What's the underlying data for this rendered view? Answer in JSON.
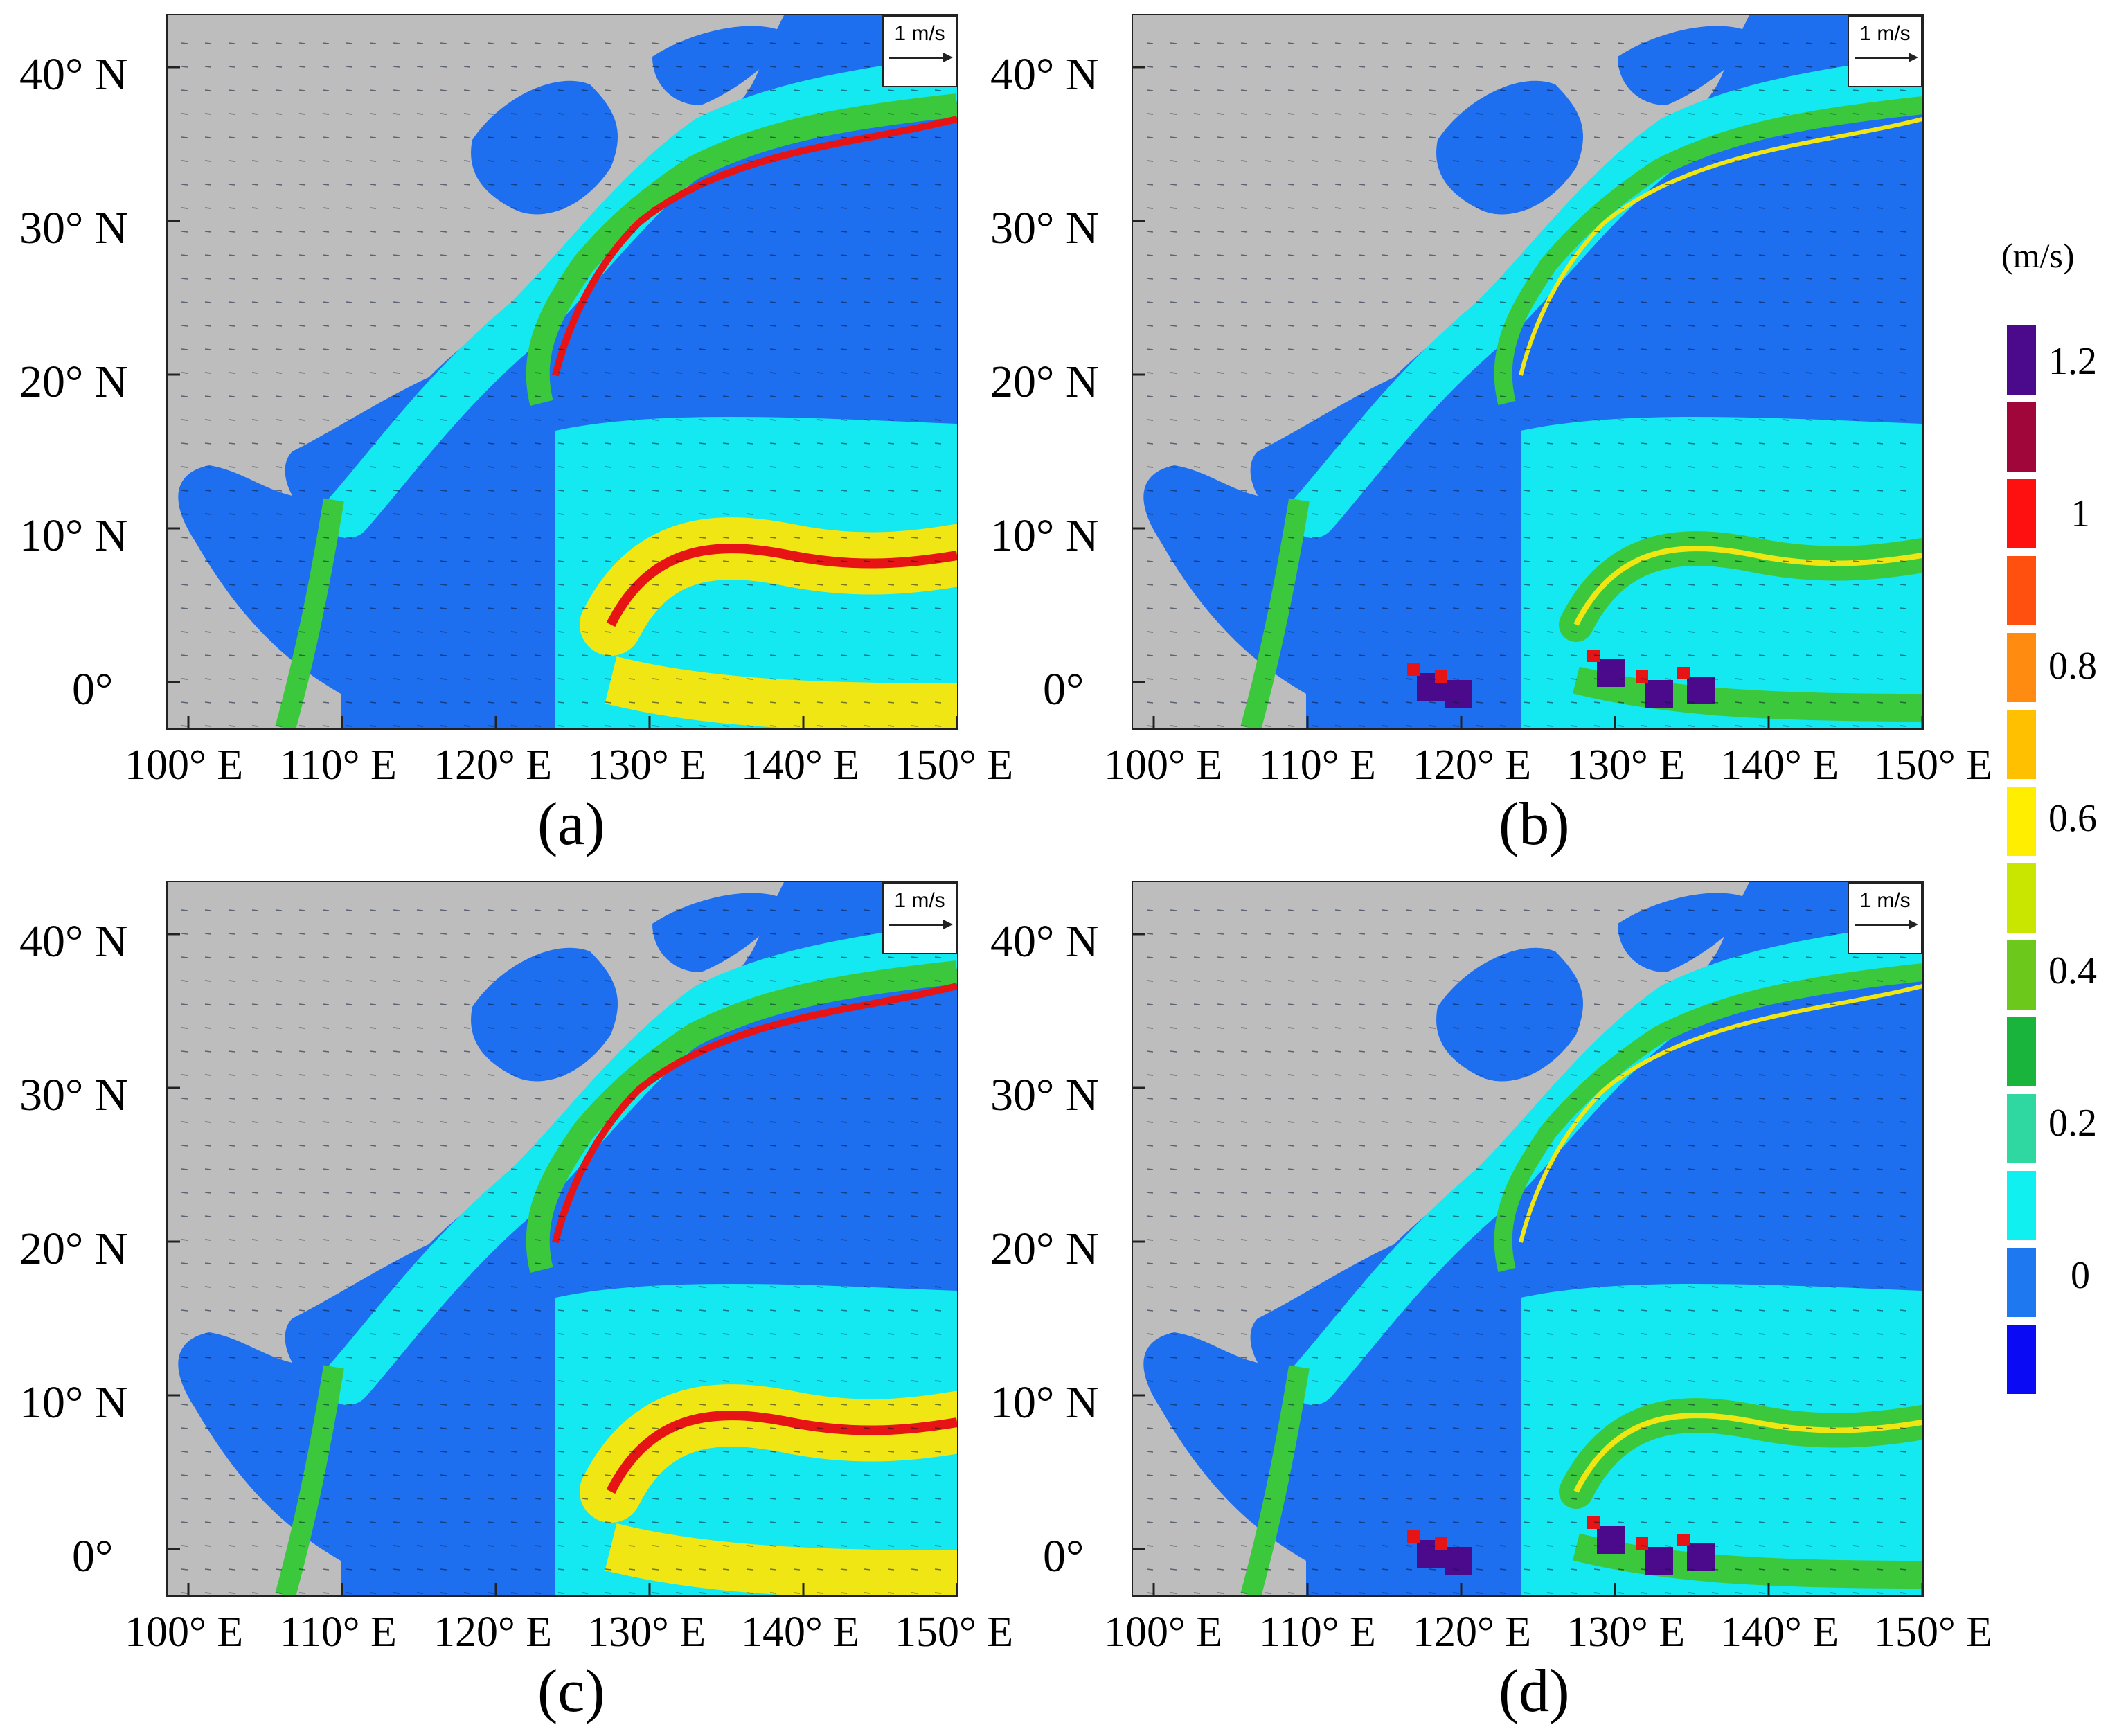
{
  "panels": [
    {
      "id": "a",
      "label": "(a)"
    },
    {
      "id": "b",
      "label": "(b)"
    },
    {
      "id": "c",
      "label": "(c)"
    },
    {
      "id": "d",
      "label": "(d)"
    }
  ],
  "lat_labels": [
    "40° N",
    "30° N",
    "20° N",
    "10° N",
    "0°"
  ],
  "lon_labels": [
    "100° E",
    "110° E",
    "120° E",
    "130° E",
    "140° E",
    "150° E"
  ],
  "scale_arrow_label": "1 m/s",
  "colorbar": {
    "unit": "(m/s)",
    "labels": [
      "1.2",
      "1",
      "0.8",
      "0.6",
      "0.4",
      "0.2",
      "0"
    ],
    "colors": [
      "#4b0a8c",
      "#a0063a",
      "#ff1010",
      "#ff5010",
      "#ff8c10",
      "#ffc000",
      "#ffee00",
      "#c8e600",
      "#6cc81a",
      "#18b43c",
      "#2ed8a0",
      "#10f0f0",
      "#1e78f0",
      "#0a0af5"
    ]
  },
  "colors": {
    "land": "#bdbdbd",
    "ocean_low": "#1e6ef0",
    "ocean_mid": "#14e8f0",
    "jet_green": "#3cc83c",
    "jet_yellow": "#f0e614",
    "jet_red": "#e61414"
  }
}
